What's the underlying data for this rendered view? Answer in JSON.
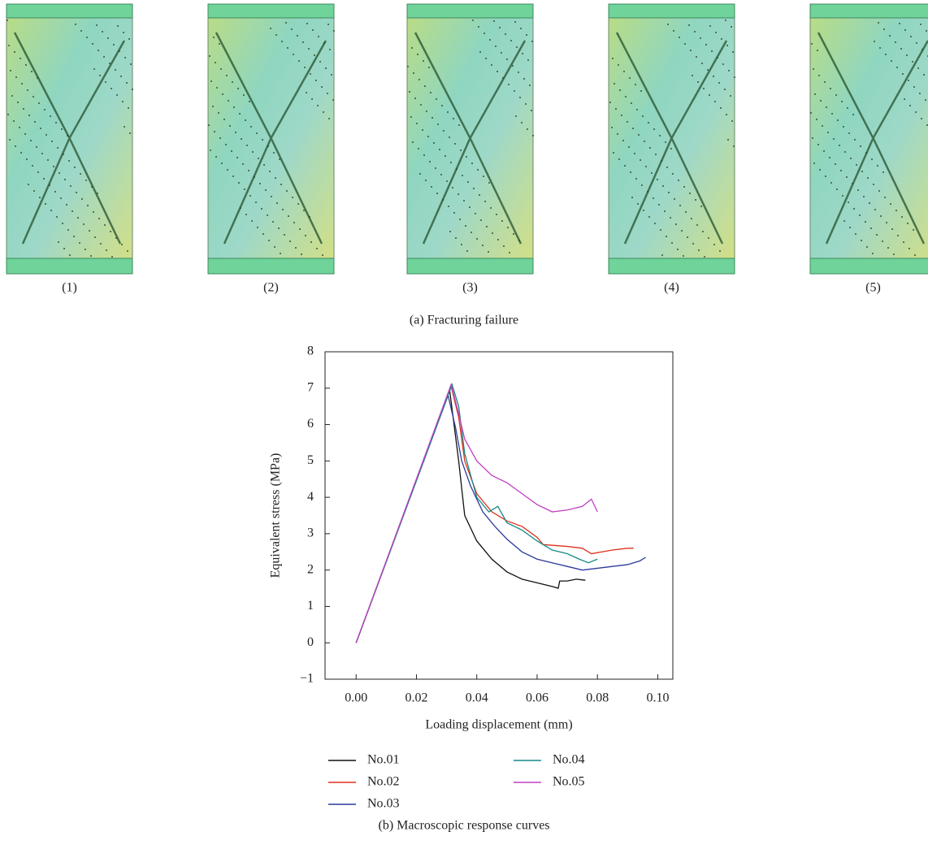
{
  "panels": {
    "labels": [
      "(1)",
      "(2)",
      "(3)",
      "(4)",
      "(5)"
    ],
    "caption": "(a) Fracturing failure"
  },
  "chart_data": {
    "type": "line",
    "x_label": "Loading displacement (mm)",
    "y_label": "Equivalent stress (MPa)",
    "xlim": [
      -0.0103,
      0.105
    ],
    "ylim": [
      -1,
      8
    ],
    "xticks": [
      {
        "value": 0,
        "label": "0.00"
      },
      0.02,
      0.04,
      0.06,
      0.08,
      {
        "value": 0.1,
        "label": "0.10"
      }
    ],
    "yticks": [
      {
        "value": -1,
        "label": "−1"
      },
      0,
      1,
      2,
      3,
      4,
      5,
      6,
      7,
      8
    ],
    "series": [
      {
        "name": "No.01",
        "color": "#111111",
        "x": [
          0,
          0.031,
          0.034,
          0.036,
          0.04,
          0.045,
          0.05,
          0.055,
          0.06,
          0.065,
          0.067,
          0.0675,
          0.07,
          0.073,
          0.076
        ],
        "values": [
          0,
          6.95,
          5.0,
          3.5,
          2.8,
          2.3,
          1.95,
          1.75,
          1.65,
          1.55,
          1.5,
          1.7,
          1.7,
          1.75,
          1.72
        ]
      },
      {
        "name": "No.02",
        "color": "#e0301e",
        "x": [
          0,
          0.0315,
          0.034,
          0.036,
          0.04,
          0.045,
          0.05,
          0.055,
          0.06,
          0.062,
          0.07,
          0.075,
          0.078,
          0.085,
          0.09,
          0.092
        ],
        "values": [
          0,
          7.05,
          6.2,
          5.0,
          4.1,
          3.6,
          3.35,
          3.2,
          2.9,
          2.7,
          2.65,
          2.6,
          2.45,
          2.55,
          2.6,
          2.6
        ]
      },
      {
        "name": "No.03",
        "color": "#2b3a9a",
        "x": [
          0,
          0.0305,
          0.033,
          0.035,
          0.038,
          0.042,
          0.046,
          0.05,
          0.055,
          0.06,
          0.065,
          0.07,
          0.075,
          0.08,
          0.085,
          0.09,
          0.094,
          0.096
        ],
        "values": [
          0,
          6.8,
          5.9,
          5.0,
          4.3,
          3.6,
          3.2,
          2.85,
          2.5,
          2.3,
          2.2,
          2.1,
          2.0,
          2.05,
          2.1,
          2.15,
          2.25,
          2.35
        ]
      },
      {
        "name": "No.04",
        "color": "#138a85",
        "x": [
          0,
          0.0318,
          0.034,
          0.036,
          0.04,
          0.044,
          0.047,
          0.05,
          0.055,
          0.06,
          0.065,
          0.07,
          0.074,
          0.077,
          0.08
        ],
        "values": [
          0,
          7.1,
          6.5,
          5.2,
          4.0,
          3.6,
          3.75,
          3.3,
          3.1,
          2.8,
          2.55,
          2.45,
          2.3,
          2.2,
          2.3
        ]
      },
      {
        "name": "No.05",
        "color": "#c040c0",
        "x": [
          0,
          0.0315,
          0.034,
          0.036,
          0.04,
          0.045,
          0.05,
          0.055,
          0.06,
          0.065,
          0.07,
          0.075,
          0.078,
          0.08
        ],
        "values": [
          0,
          7.1,
          6.3,
          5.6,
          5.0,
          4.6,
          4.4,
          4.1,
          3.8,
          3.6,
          3.65,
          3.75,
          3.95,
          3.6
        ]
      }
    ]
  },
  "caption_b": "(b) Macroscopic response curves"
}
